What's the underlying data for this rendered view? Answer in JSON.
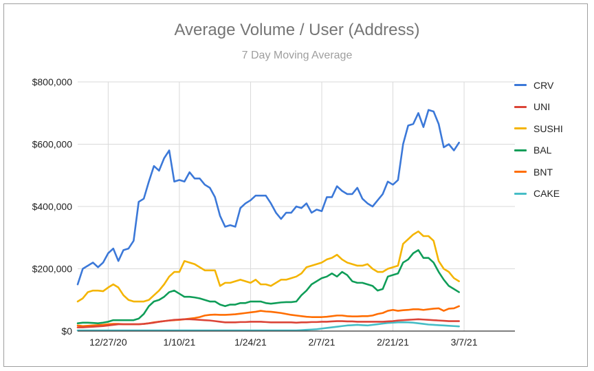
{
  "chart_data": {
    "type": "line",
    "title": "Average Volume / User (Address)",
    "subtitle": "7 Day Moving Average",
    "xlabel": "",
    "ylabel": "",
    "ylim": [
      0,
      800000
    ],
    "y_ticks": [
      {
        "value": 0,
        "label": "$0"
      },
      {
        "value": 200000,
        "label": "$200,000"
      },
      {
        "value": 400000,
        "label": "$400,000"
      },
      {
        "value": 600000,
        "label": "$600,000"
      },
      {
        "value": 800000,
        "label": "$800,000"
      }
    ],
    "x_range": [
      0,
      86
    ],
    "x_ticks": [
      {
        "value": 6,
        "label": "12/27/20"
      },
      {
        "value": 20,
        "label": "1/10/21"
      },
      {
        "value": 34,
        "label": "1/24/21"
      },
      {
        "value": 48,
        "label": "2/7/21"
      },
      {
        "value": 62,
        "label": "2/21/21"
      },
      {
        "value": 76,
        "label": "3/7/21"
      }
    ],
    "grid": true,
    "legend_position": "right",
    "series": [
      {
        "name": "CRV",
        "color": "#3b78d8",
        "values": [
          150000,
          200000,
          210000,
          220000,
          205000,
          220000,
          250000,
          265000,
          225000,
          260000,
          265000,
          290000,
          415000,
          425000,
          480000,
          530000,
          515000,
          555000,
          580000,
          480000,
          485000,
          480000,
          510000,
          490000,
          490000,
          470000,
          460000,
          430000,
          370000,
          335000,
          340000,
          335000,
          395000,
          410000,
          420000,
          435000,
          435000,
          435000,
          410000,
          380000,
          360000,
          380000,
          380000,
          400000,
          395000,
          410000,
          380000,
          390000,
          385000,
          430000,
          430000,
          465000,
          450000,
          440000,
          440000,
          460000,
          425000,
          410000,
          400000,
          420000,
          440000,
          480000,
          470000,
          485000,
          600000,
          660000,
          665000,
          700000,
          655000,
          710000,
          705000,
          665000,
          590000,
          600000,
          580000,
          605000
        ]
      },
      {
        "name": "UNI",
        "color": "#db4437",
        "values": [
          12000,
          12000,
          13000,
          14000,
          15000,
          16000,
          18000,
          20000,
          22000,
          22000,
          22000,
          22000,
          22000,
          23000,
          25000,
          27000,
          30000,
          32000,
          34000,
          36000,
          37000,
          38000,
          38000,
          37000,
          36000,
          35000,
          34000,
          32000,
          30000,
          28000,
          28000,
          28000,
          29000,
          29000,
          30000,
          30000,
          30000,
          29000,
          28000,
          28000,
          28000,
          28000,
          28000,
          27000,
          28000,
          28000,
          29000,
          29000,
          30000,
          30000,
          31000,
          32000,
          32000,
          31000,
          31000,
          30000,
          30000,
          30000,
          30000,
          30000,
          30000,
          31000,
          32000,
          34000,
          35000,
          36000,
          37000,
          38000,
          37000,
          36000,
          35000,
          34000,
          33000,
          32000,
          32000,
          32000
        ]
      },
      {
        "name": "SUSHI",
        "color": "#f4b400",
        "values": [
          95000,
          105000,
          125000,
          130000,
          130000,
          128000,
          140000,
          150000,
          140000,
          115000,
          100000,
          95000,
          95000,
          95000,
          100000,
          115000,
          130000,
          150000,
          175000,
          190000,
          190000,
          225000,
          220000,
          215000,
          205000,
          195000,
          195000,
          195000,
          145000,
          155000,
          155000,
          160000,
          165000,
          160000,
          155000,
          165000,
          150000,
          150000,
          145000,
          155000,
          165000,
          165000,
          170000,
          175000,
          185000,
          205000,
          210000,
          215000,
          220000,
          230000,
          235000,
          245000,
          230000,
          220000,
          215000,
          210000,
          210000,
          215000,
          200000,
          190000,
          190000,
          200000,
          205000,
          210000,
          280000,
          295000,
          310000,
          320000,
          305000,
          305000,
          290000,
          225000,
          200000,
          190000,
          170000,
          160000
        ]
      },
      {
        "name": "BAL",
        "color": "#0f9d58",
        "values": [
          25000,
          27000,
          27000,
          26000,
          25000,
          27000,
          30000,
          35000,
          35000,
          35000,
          35000,
          35000,
          40000,
          55000,
          80000,
          95000,
          100000,
          110000,
          125000,
          130000,
          120000,
          110000,
          110000,
          108000,
          105000,
          100000,
          95000,
          95000,
          85000,
          80000,
          85000,
          85000,
          90000,
          90000,
          95000,
          95000,
          95000,
          90000,
          88000,
          90000,
          92000,
          93000,
          93000,
          95000,
          115000,
          130000,
          150000,
          160000,
          170000,
          175000,
          185000,
          175000,
          190000,
          180000,
          160000,
          155000,
          155000,
          150000,
          145000,
          130000,
          135000,
          175000,
          180000,
          185000,
          220000,
          230000,
          250000,
          260000,
          235000,
          235000,
          220000,
          190000,
          165000,
          145000,
          135000,
          125000
        ]
      },
      {
        "name": "BNT",
        "color": "#ff6d00",
        "values": [
          18000,
          16000,
          17000,
          18000,
          19000,
          20000,
          22000,
          23000,
          23000,
          22000,
          22000,
          22000,
          22000,
          23000,
          25000,
          28000,
          30000,
          32000,
          34000,
          35000,
          36000,
          38000,
          40000,
          42000,
          45000,
          50000,
          52000,
          53000,
          52000,
          52000,
          53000,
          54000,
          56000,
          58000,
          60000,
          62000,
          65000,
          63000,
          62000,
          60000,
          58000,
          55000,
          52000,
          50000,
          48000,
          46000,
          45000,
          45000,
          45000,
          46000,
          48000,
          50000,
          50000,
          48000,
          47000,
          47000,
          48000,
          48000,
          50000,
          55000,
          58000,
          65000,
          68000,
          65000,
          67000,
          68000,
          70000,
          70000,
          68000,
          70000,
          72000,
          73000,
          65000,
          72000,
          73000,
          80000
        ]
      },
      {
        "name": "CAKE",
        "color": "#46bdc6",
        "values": [
          2000,
          2000,
          2000,
          2000,
          2000,
          2000,
          2000,
          2000,
          2000,
          2000,
          2000,
          2000,
          2000,
          2000,
          2000,
          2000,
          2000,
          2000,
          2000,
          2000,
          2000,
          2000,
          2000,
          2000,
          2000,
          2000,
          2000,
          2000,
          2000,
          2000,
          2000,
          2000,
          2000,
          2000,
          2000,
          2000,
          2000,
          2000,
          2000,
          2000,
          2000,
          2000,
          2000,
          2000,
          3000,
          4000,
          5000,
          6000,
          8000,
          10000,
          12000,
          14000,
          16000,
          18000,
          19000,
          20000,
          19000,
          18000,
          20000,
          22000,
          24000,
          26000,
          27000,
          28000,
          28000,
          28000,
          27000,
          25000,
          23000,
          21000,
          20000,
          19000,
          18000,
          17000,
          16000,
          15000
        ]
      }
    ]
  }
}
